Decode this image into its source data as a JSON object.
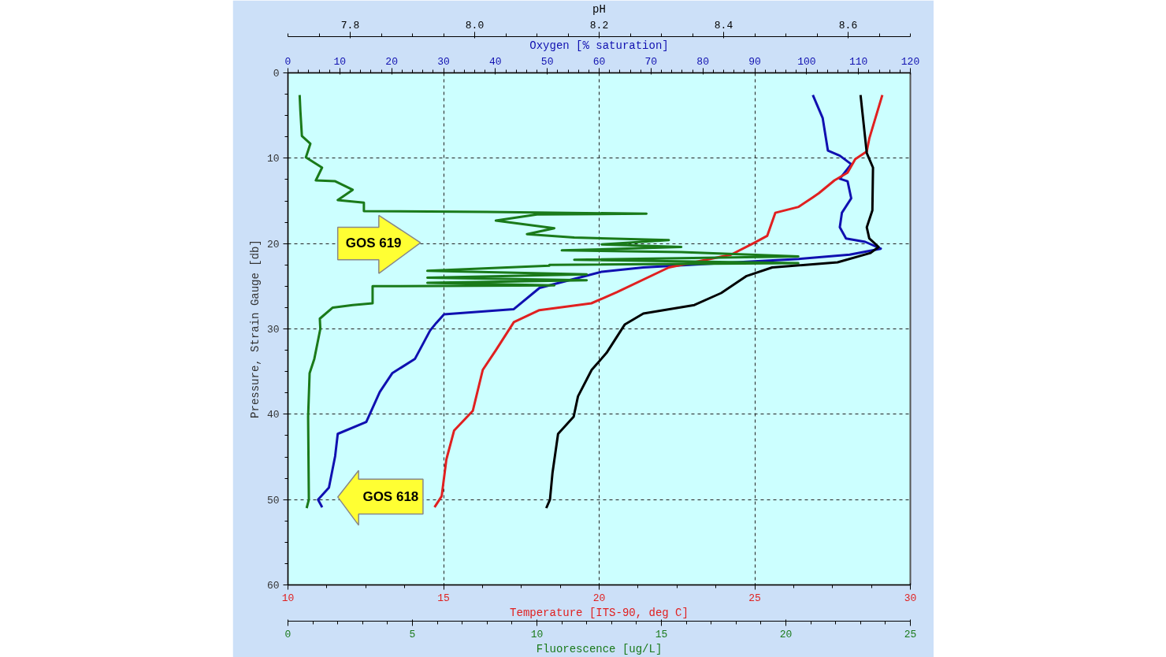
{
  "chart_data": [
    {
      "type": "line",
      "xlabel": "Temperature [ITS-90, deg C]",
      "x2label": "Oxygen [% saturation]",
      "ylabel": "Pressure, Strain Gauge [db]",
      "xlim": [
        10,
        30
      ],
      "xticks": [
        10,
        15,
        20,
        25,
        30
      ],
      "x2lim": [
        0,
        120
      ],
      "x2ticks": [
        0,
        10,
        20,
        30,
        40,
        50,
        60,
        70,
        80,
        90,
        100,
        110,
        120
      ],
      "ylim": [
        60,
        0
      ],
      "yticks": [
        0,
        10,
        20,
        30,
        40,
        50,
        60
      ],
      "grid": true,
      "annotations": [
        "GOS 619",
        "GOS 618"
      ],
      "series": [
        {
          "axis": "x2",
          "color": "#1010b0",
          "x": [
            101.2,
            103.1,
            104.1,
            106.4,
            108.6,
            106.4,
            107.9,
            108.6,
            106.8,
            106.4,
            107.6,
            111.3,
            114.3,
            108.3,
            98.5,
            83.5,
            68.5,
            60.5,
            48.5,
            43.5,
            30.1,
            28.6,
            27.4,
            24.5,
            20.1,
            17.7,
            15.1,
            9.6,
            9.1,
            7.9,
            5.8,
            6.6
          ],
          "values": [
            2.6,
            5.3,
            9.1,
            9.7,
            10.7,
            12.4,
            12.7,
            14.7,
            16.4,
            18.1,
            19.4,
            19.8,
            20.6,
            21.3,
            21.8,
            22.3,
            22.8,
            23.3,
            25.2,
            27.7,
            28.3,
            29.3,
            30.2,
            33.5,
            35.2,
            37.4,
            40.9,
            42.3,
            44.9,
            48.6,
            50,
            50.9
          ]
        },
        {
          "color": "#e02020",
          "x": [
            29.1,
            28.68,
            28.6,
            28.23,
            27.98,
            27.56,
            27.06,
            26.86,
            26.41,
            25.66,
            25.4,
            24.99,
            24.24,
            22.24,
            20.57,
            19.75,
            18.08,
            17.26,
            16.68,
            16.26,
            15.94,
            15.34,
            15.09,
            14.94,
            14.71
          ],
          "values": [
            2.6,
            7.7,
            9.2,
            10.1,
            11.7,
            12.6,
            14.1,
            14.6,
            15.7,
            16.4,
            19.1,
            19.9,
            21.3,
            22.8,
            25.7,
            27.0,
            27.8,
            29.2,
            32.5,
            34.8,
            39.6,
            41.9,
            45.3,
            49.6,
            50.9
          ]
        }
      ]
    },
    {
      "type": "line",
      "xlabel": "Fluorescence [ug/L]",
      "x2label": "pH",
      "xlim": [
        0,
        25
      ],
      "xticks": [
        0,
        5,
        10,
        15,
        20,
        25
      ],
      "x2lim": [
        7.7,
        8.7
      ],
      "x2ticks": [
        7.8,
        {
          "value": 8.0,
          "label": "8.0"
        },
        8.2,
        8.4,
        8.6
      ],
      "ylim": [
        60,
        0
      ],
      "tick_labels": "x",
      "series": [
        {
          "color": "#1a7a1a",
          "x": [
            0.47,
            0.5,
            0.56,
            0.9,
            0.72,
            1.37,
            1.12,
            1.9,
            2.6,
            2.0,
            3.05,
            3.05,
            8.0,
            14.4,
            10.0,
            8.35,
            10.7,
            9.6,
            11.5,
            15.3,
            12.6,
            15.8,
            11.0,
            15.8,
            20.5,
            11.5,
            20.5,
            10.5,
            10.5,
            5.6,
            12.0,
            5.6,
            12.0,
            5.6,
            10.7,
            3.4,
            3.4,
            2.6,
            1.8,
            1.28,
            1.3,
            1.06,
            0.87,
            0.81,
            0.84,
            0.75
          ],
          "values": [
            2.6,
            4.5,
            7.4,
            8.3,
            9.9,
            11.1,
            12.6,
            12.7,
            13.7,
            14.9,
            15.2,
            16.2,
            16.3,
            16.5,
            16.6,
            17.3,
            18.2,
            18.9,
            19.3,
            19.6,
            20.1,
            20.4,
            20.8,
            21.0,
            21.5,
            21.9,
            22.3,
            22.5,
            22.6,
            23.2,
            23.6,
            24.0,
            24.3,
            24.6,
            24.9,
            25.0,
            27.0,
            27.2,
            27.5,
            28.8,
            30,
            33.5,
            35.2,
            40.3,
            50,
            51
          ]
        },
        {
          "axis": "x2",
          "color": "#000000",
          "x": [
            8.62,
            8.63,
            8.64,
            8.639,
            8.63,
            8.634,
            8.649,
            8.636,
            8.583,
            8.478,
            8.437,
            8.396,
            8.353,
            8.271,
            8.241,
            8.212,
            8.188,
            8.166,
            8.159,
            8.134,
            8.125,
            8.121,
            8.115
          ],
          "values": [
            2.6,
            9.4,
            11.1,
            16.1,
            18.1,
            19.4,
            20.4,
            21.1,
            22.2,
            22.8,
            23.8,
            25.8,
            27.2,
            28.2,
            29.5,
            32.8,
            34.8,
            37.9,
            40.3,
            42.3,
            46.9,
            50,
            51
          ]
        }
      ]
    }
  ]
}
